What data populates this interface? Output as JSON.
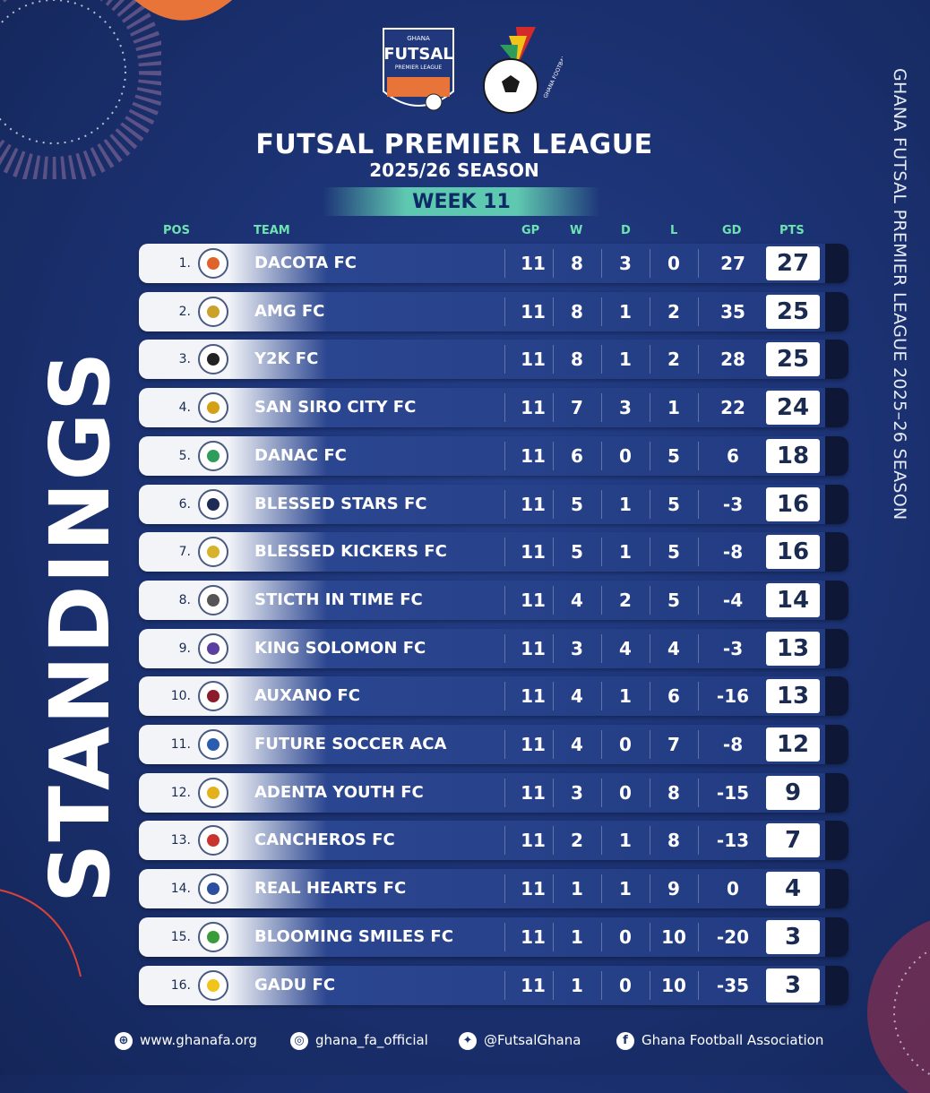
{
  "logo_futsal": {
    "top": "GHANA",
    "main": "FUTSAL",
    "sub": "PREMIER LEAGUE"
  },
  "logo_gfa": {
    "ring_text": "GHANA FOOTBALL ASSOCIATION"
  },
  "title": "FUTSAL PREMIER LEAGUE",
  "season": "2025/26 SEASON",
  "week": "WEEK 11",
  "vertical_title": "STANDINGS",
  "side_title": "GHANA FUTSAL PREMIER LEAGUE 2025–26 SEASON",
  "headers": {
    "pos": "POS",
    "team": "TEAM",
    "gp": "GP",
    "w": "W",
    "d": "D",
    "l": "L",
    "gd": "GD",
    "pts": "PTS"
  },
  "rows": [
    {
      "pos": "1.",
      "team": "DACOTA FC",
      "gp": "11",
      "w": "8",
      "d": "3",
      "l": "0",
      "gd": "27",
      "pts": "27",
      "crest_color": "#e0632a"
    },
    {
      "pos": "2.",
      "team": "AMG FC",
      "gp": "11",
      "w": "8",
      "d": "1",
      "l": "2",
      "gd": "35",
      "pts": "25",
      "crest_color": "#c9a227"
    },
    {
      "pos": "3.",
      "team": "Y2K FC",
      "gp": "11",
      "w": "8",
      "d": "1",
      "l": "2",
      "gd": "28",
      "pts": "25",
      "crest_color": "#222222"
    },
    {
      "pos": "4.",
      "team": "SAN SIRO CITY FC",
      "gp": "11",
      "w": "7",
      "d": "3",
      "l": "1",
      "gd": "22",
      "pts": "24",
      "crest_color": "#d4a017"
    },
    {
      "pos": "5.",
      "team": "DANAC FC",
      "gp": "11",
      "w": "6",
      "d": "0",
      "l": "5",
      "gd": "6",
      "pts": "18",
      "crest_color": "#2e9c5a"
    },
    {
      "pos": "6.",
      "team": "BLESSED STARS FC",
      "gp": "11",
      "w": "5",
      "d": "1",
      "l": "5",
      "gd": "-3",
      "pts": "16",
      "crest_color": "#1d2b55"
    },
    {
      "pos": "7.",
      "team": "BLESSED KICKERS FC",
      "gp": "11",
      "w": "5",
      "d": "1",
      "l": "5",
      "gd": "-8",
      "pts": "16",
      "crest_color": "#d7b22a"
    },
    {
      "pos": "8.",
      "team": "STICTH IN TIME FC",
      "gp": "11",
      "w": "4",
      "d": "2",
      "l": "5",
      "gd": "-4",
      "pts": "14",
      "crest_color": "#555555"
    },
    {
      "pos": "9.",
      "team": "KING SOLOMON FC",
      "gp": "11",
      "w": "3",
      "d": "4",
      "l": "4",
      "gd": "-3",
      "pts": "13",
      "crest_color": "#5a3fa0"
    },
    {
      "pos": "10.",
      "team": "AUXANO FC",
      "gp": "11",
      "w": "4",
      "d": "1",
      "l": "6",
      "gd": "-16",
      "pts": "13",
      "crest_color": "#8a1c2b"
    },
    {
      "pos": "11.",
      "team": "FUTURE SOCCER ACA",
      "gp": "11",
      "w": "4",
      "d": "0",
      "l": "7",
      "gd": "-8",
      "pts": "12",
      "crest_color": "#2a5db0"
    },
    {
      "pos": "12.",
      "team": "ADENTA YOUTH FC",
      "gp": "11",
      "w": "3",
      "d": "0",
      "l": "8",
      "gd": "-15",
      "pts": "9",
      "crest_color": "#e3b21a"
    },
    {
      "pos": "13.",
      "team": "CANCHEROS FC",
      "gp": "11",
      "w": "2",
      "d": "1",
      "l": "8",
      "gd": "-13",
      "pts": "7",
      "crest_color": "#c9352e"
    },
    {
      "pos": "14.",
      "team": "REAL HEARTS FC",
      "gp": "11",
      "w": "1",
      "d": "1",
      "l": "9",
      "gd": "0",
      "pts": "4",
      "crest_color": "#2c4fa0"
    },
    {
      "pos": "15.",
      "team": "BLOOMING SMILES FC",
      "gp": "11",
      "w": "1",
      "d": "0",
      "l": "10",
      "gd": "-20",
      "pts": "3",
      "crest_color": "#3a9b3a"
    },
    {
      "pos": "16.",
      "team": "GADU FC",
      "gp": "11",
      "w": "1",
      "d": "0",
      "l": "10",
      "gd": "-35",
      "pts": "3",
      "crest_color": "#f2c318"
    }
  ],
  "footer": {
    "website": "www.ghanafa.org",
    "instagram": "ghana_fa_official",
    "twitter": "@FutsalGhana",
    "facebook": "Ghana Football Association"
  },
  "icons": {
    "website": "globe-icon",
    "instagram": "instagram-icon",
    "twitter": "twitter-icon",
    "facebook": "facebook-icon"
  },
  "colors": {
    "background": "#1c3375",
    "header_accent": "#6ee3b2",
    "week_banner": "#5fc8b0",
    "orange": "#e8743a"
  }
}
